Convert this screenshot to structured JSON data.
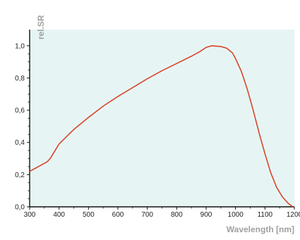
{
  "chart_data": {
    "type": "line",
    "title": "",
    "xlabel": "Wavelength [nm]",
    "ylabel": "rel.SR",
    "xlim": [
      300,
      1200
    ],
    "ylim": [
      0,
      1.1
    ],
    "grid": false,
    "x_ticks": [
      "300",
      "400",
      "500",
      "600",
      "700",
      "800",
      "900",
      "1000",
      "1100",
      "1200"
    ],
    "y_ticks": [
      "0,0",
      "0,2",
      "0,4",
      "0,6",
      "0,8",
      "1,0"
    ],
    "colors": {
      "plot_background": "#e6f5f4",
      "line": "#d9452c",
      "axis": "#111111"
    },
    "series": [
      {
        "x": [
          300,
          320,
          340,
          360,
          370,
          380,
          400,
          450,
          500,
          550,
          600,
          650,
          700,
          750,
          800,
          850,
          880,
          900,
          920,
          950,
          970,
          990,
          1000,
          1020,
          1040,
          1060,
          1080,
          1100,
          1120,
          1140,
          1160,
          1180,
          1195
        ],
        "y": [
          0.22,
          0.24,
          0.26,
          0.28,
          0.3,
          0.33,
          0.39,
          0.48,
          0.555,
          0.625,
          0.685,
          0.74,
          0.795,
          0.845,
          0.89,
          0.935,
          0.965,
          0.99,
          1.0,
          0.995,
          0.985,
          0.955,
          0.92,
          0.84,
          0.73,
          0.6,
          0.46,
          0.33,
          0.21,
          0.12,
          0.06,
          0.02,
          0.0
        ]
      }
    ]
  }
}
